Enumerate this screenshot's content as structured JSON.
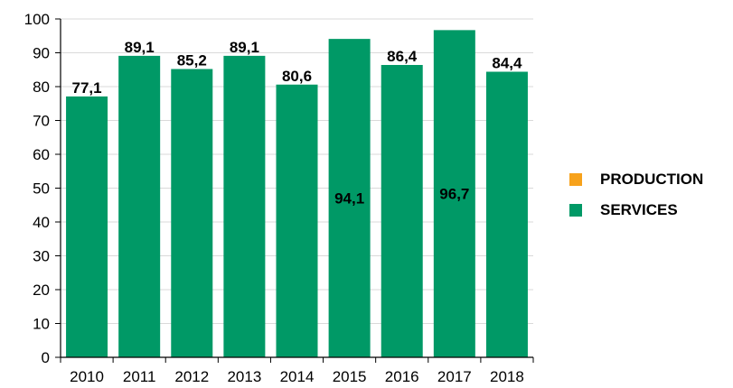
{
  "colors": {
    "production": "#f7a21b",
    "services": "#009966",
    "grid": "#d9d9d9",
    "axis": "#000000"
  },
  "legend": {
    "items": [
      {
        "label": "PRODUCTION",
        "color": "#f7a21b"
      },
      {
        "label": "SERVICES",
        "color": "#009966"
      }
    ]
  },
  "chart_data": {
    "type": "bar",
    "categories": [
      "2010",
      "2011",
      "2012",
      "2013",
      "2014",
      "2015",
      "2016",
      "2017",
      "2018"
    ],
    "series": [
      {
        "name": "PRODUCTION",
        "values": [
          0,
          0,
          0,
          0,
          0,
          0,
          0,
          0,
          0
        ]
      },
      {
        "name": "SERVICES",
        "values": [
          77.1,
          89.1,
          85.2,
          89.1,
          80.6,
          94.1,
          86.4,
          96.7,
          84.4
        ]
      }
    ],
    "data_labels": [
      "77,1",
      "89,1",
      "85,2",
      "89,1",
      "80,6",
      "94,1",
      "86,4",
      "96,7",
      "84,4"
    ],
    "label_inside": [
      false,
      false,
      false,
      false,
      false,
      true,
      false,
      true,
      false
    ],
    "yticks": [
      "0",
      "10",
      "20",
      "30",
      "40",
      "50",
      "60",
      "70",
      "80",
      "90",
      "100"
    ],
    "ylim": [
      0,
      100
    ],
    "grid": true,
    "legend_position": "right",
    "title": "",
    "xlabel": "",
    "ylabel": ""
  }
}
